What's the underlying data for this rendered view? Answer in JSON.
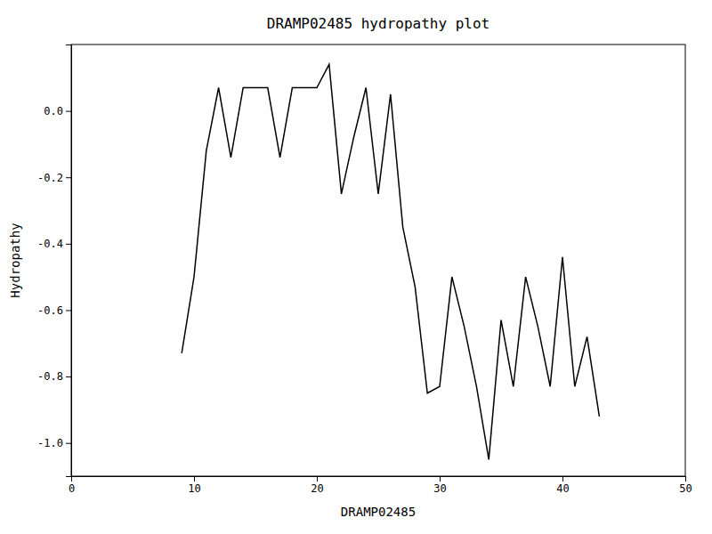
{
  "chart_data": {
    "type": "line",
    "title": "DRAMP02485 hydropathy plot",
    "xlabel": "DRAMP02485",
    "ylabel": "Hydropathy",
    "color": "#000000",
    "xlim": [
      0,
      50
    ],
    "ylim": [
      -1.1,
      0.2
    ],
    "xticks": [
      0,
      10,
      20,
      30,
      40,
      50
    ],
    "yticks": [
      {
        "value": 0.0,
        "label": "0.0"
      },
      -0.2,
      -0.4,
      -0.6,
      -0.8,
      {
        "value": -1.0,
        "label": "-1.0"
      }
    ],
    "grid": false,
    "x": [
      9,
      10,
      11,
      12,
      13,
      14,
      15,
      16,
      17,
      18,
      19,
      20,
      21,
      22,
      23,
      24,
      25,
      26,
      27,
      28,
      29,
      30,
      31,
      32,
      33,
      34,
      35,
      36,
      37,
      38,
      39,
      40,
      41,
      42,
      43
    ],
    "y": [
      -0.73,
      -0.5,
      -0.12,
      0.07,
      -0.14,
      0.07,
      0.07,
      0.07,
      -0.14,
      0.07,
      0.07,
      0.07,
      0.14,
      -0.25,
      -0.08,
      0.07,
      -0.25,
      0.05,
      -0.35,
      -0.53,
      -0.85,
      -0.83,
      -0.5,
      -0.65,
      -0.83,
      -1.05,
      -0.63,
      -0.83,
      -0.5,
      -0.65,
      -0.83,
      -0.44,
      -0.83,
      -0.68,
      -0.92
    ]
  }
}
